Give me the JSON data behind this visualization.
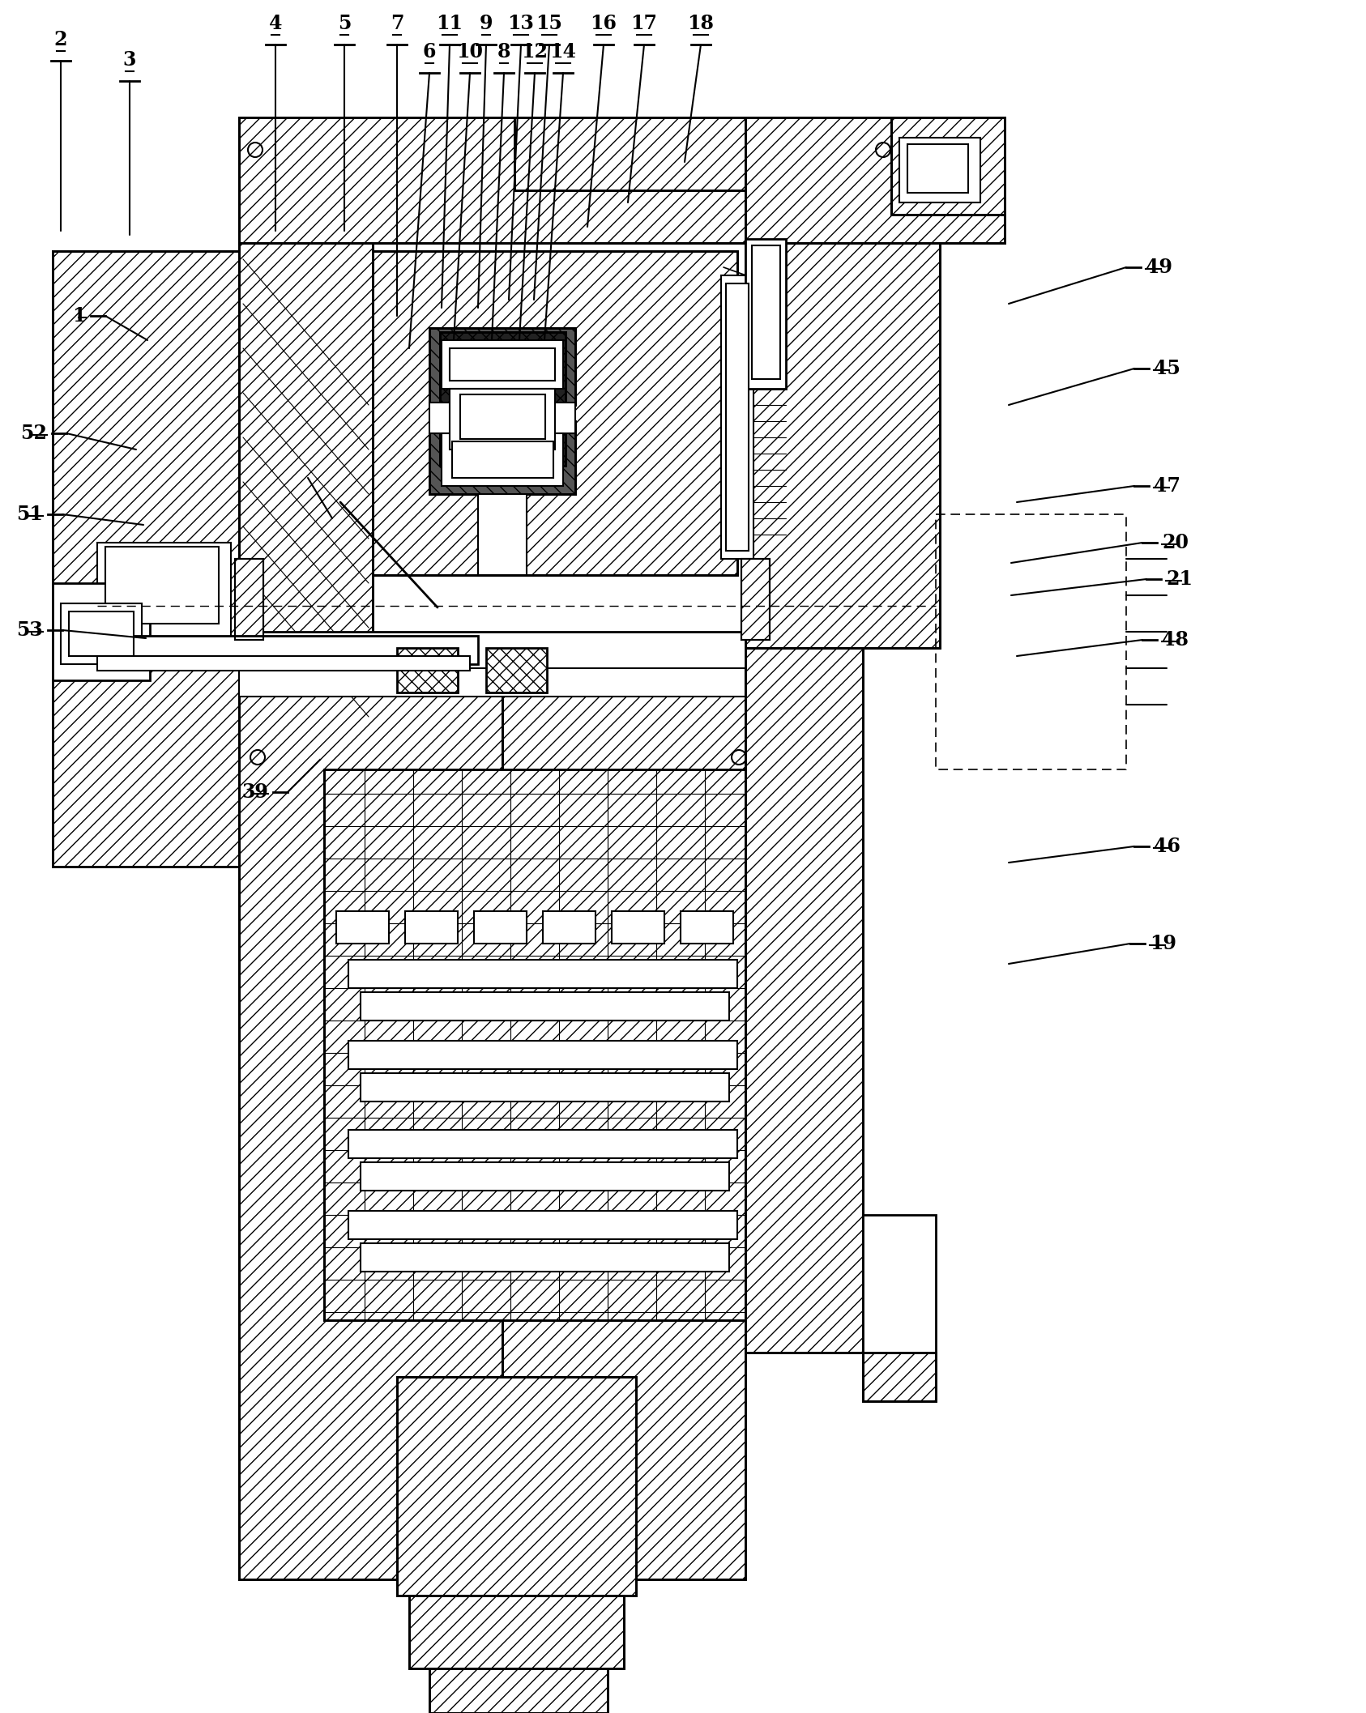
{
  "bg_color": "#ffffff",
  "line_color": "#000000",
  "figsize": [
    16.86,
    21.15
  ],
  "dpi": 100,
  "top_labels": [
    [
      75,
      75,
      75,
      285,
      "2"
    ],
    [
      160,
      100,
      160,
      290,
      "3"
    ],
    [
      340,
      55,
      340,
      285,
      "4"
    ],
    [
      425,
      55,
      425,
      285,
      "5"
    ],
    [
      490,
      55,
      490,
      390,
      "7"
    ],
    [
      530,
      90,
      505,
      430,
      "6"
    ],
    [
      555,
      55,
      545,
      380,
      "11"
    ],
    [
      580,
      90,
      560,
      420,
      "10"
    ],
    [
      600,
      55,
      590,
      380,
      "9"
    ],
    [
      622,
      90,
      607,
      420,
      "8"
    ],
    [
      643,
      55,
      628,
      370,
      "13"
    ],
    [
      660,
      90,
      641,
      420,
      "12"
    ],
    [
      678,
      55,
      659,
      370,
      "15"
    ],
    [
      695,
      90,
      672,
      420,
      "14"
    ],
    [
      745,
      55,
      725,
      280,
      "16"
    ],
    [
      795,
      55,
      775,
      250,
      "17"
    ],
    [
      865,
      55,
      845,
      200,
      "18"
    ]
  ],
  "right_labels": [
    [
      1390,
      330,
      1245,
      375,
      "49"
    ],
    [
      1400,
      455,
      1245,
      500,
      "45"
    ],
    [
      1400,
      600,
      1255,
      620,
      "47"
    ],
    [
      1410,
      670,
      1248,
      695,
      "20"
    ],
    [
      1415,
      715,
      1248,
      735,
      "21"
    ],
    [
      1410,
      790,
      1255,
      810,
      "48"
    ],
    [
      1400,
      1045,
      1245,
      1065,
      "46"
    ],
    [
      1395,
      1165,
      1245,
      1190,
      "19"
    ]
  ],
  "left_labels": [
    [
      130,
      390,
      182,
      420,
      "1"
    ],
    [
      82,
      535,
      168,
      555,
      "52"
    ],
    [
      77,
      635,
      177,
      648,
      "51"
    ],
    [
      77,
      778,
      180,
      788,
      "53"
    ]
  ],
  "bottom_labels": [
    [
      355,
      978,
      395,
      938,
      "39"
    ]
  ]
}
